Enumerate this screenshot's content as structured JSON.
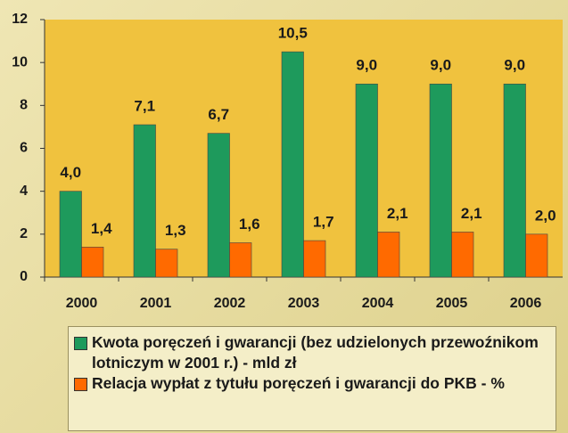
{
  "chart_data": {
    "type": "bar",
    "categories": [
      "2000",
      "2001",
      "2002",
      "2003",
      "2004",
      "2005",
      "2006"
    ],
    "series": [
      {
        "name": "Kwota poręczeń i gwarancji (bez udzielonych przewoźnikom lotniczym w 2001 r.) - mld zł",
        "color": "#1e9a5c",
        "values": [
          4.0,
          7.1,
          6.7,
          10.5,
          9.0,
          9.0,
          9.0
        ],
        "value_labels": [
          "4,0",
          "7,1",
          "6,7",
          "10,5",
          "9,0",
          "9,0",
          "9,0"
        ]
      },
      {
        "name": "Relacja wypłat z tytułu poręczeń i gwarancji do PKB - %",
        "color": "#ff6a00",
        "values": [
          1.4,
          1.3,
          1.6,
          1.7,
          2.1,
          2.1,
          2.0
        ],
        "value_labels": [
          "1,4",
          "1,3",
          "1,6",
          "1,7",
          "2,1",
          "2,1",
          "2,0"
        ]
      }
    ],
    "ylim": [
      0,
      12
    ],
    "yticks": [
      0,
      2,
      4,
      6,
      8,
      10,
      12
    ],
    "grid": false,
    "legend": "bottom"
  }
}
